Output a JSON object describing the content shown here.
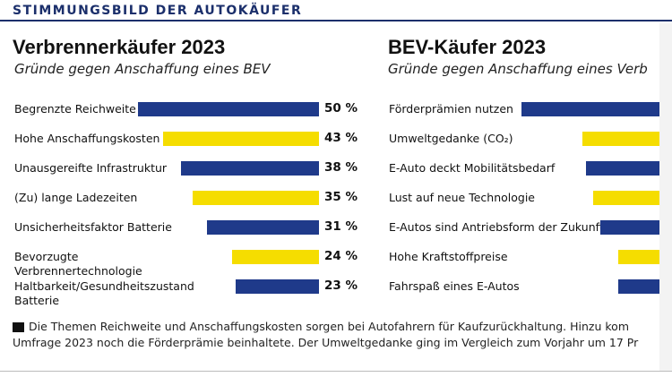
{
  "header": "STIMMUNGSBILD DER AUTOKÄUFER",
  "colors": {
    "blue": "#1f3a8a",
    "yellow": "#f5dd00",
    "header_blue": "#1b2f6b"
  },
  "footnote": {
    "line1": "Die Themen Reichweite und Anschaffungskosten sorgen bei Autofahrern für Kaufzurückhaltung. Hinzu kom",
    "line2": "Umfrage 2023 noch die Förderprämie beinhaltete. Der Umweltgedanke ging im Vergleich zum Vorjahr um 17 Pr"
  },
  "chart_data": [
    {
      "type": "bar",
      "title": "Verbrennerkäufer 2023",
      "subtitle": "Gründe gegen Anschaffung eines BEV",
      "categories": [
        "Begrenzte Reichweite",
        "Hohe Anschaffungskosten",
        "Unausgereifte Infrastruktur",
        "(Zu) lange Ladezeiten",
        "Unsicherheitsfaktor Batterie",
        "Bevorzugte Verbrennertechnologie",
        "Haltbarkeit/Gesundheitszustand Batterie"
      ],
      "values": [
        50,
        43,
        38,
        35,
        31,
        24,
        23
      ],
      "value_labels": [
        "50 %",
        "43 %",
        "38 %",
        "35 %",
        "31 %",
        "24 %",
        "23 %"
      ],
      "bar_colors": [
        "blue",
        "yellow",
        "blue",
        "yellow",
        "blue",
        "yellow",
        "blue"
      ],
      "unit": "%",
      "xlim": [
        0,
        50
      ]
    },
    {
      "type": "bar",
      "title": "BEV-Käufer 2023",
      "subtitle": "Gründe gegen Anschaffung eines Verb",
      "categories": [
        "Förderprämien nutzen",
        "Umweltgedanke (CO₂)",
        "E-Auto deckt Mobilitätsbedarf",
        "Lust auf neue Technologie",
        "E-Autos sind Antriebsform der Zukunft",
        "Hohe Kraftstoffpreise",
        "Fahrspaß eines E-Autos"
      ],
      "values": [
        null,
        null,
        null,
        null,
        null,
        null,
        null
      ],
      "bar_colors": [
        "blue",
        "yellow",
        "blue",
        "yellow",
        "blue",
        "yellow",
        "blue"
      ],
      "note": "values cropped at image edge"
    }
  ]
}
